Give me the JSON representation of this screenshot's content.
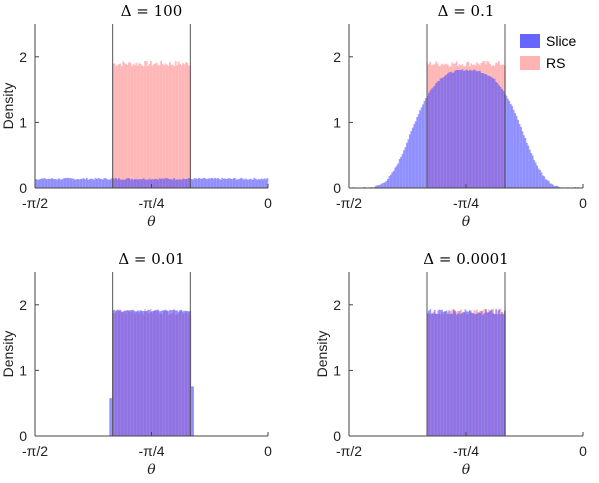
{
  "colors": {
    "slice": "#4b4bff",
    "rs": "#ff9999",
    "overlap": "#b07ab8",
    "axis": "#444444",
    "marker": "#555555"
  },
  "legend": {
    "placement": "top-right",
    "entries": [
      "Slice",
      "RS"
    ]
  },
  "chart_data": [
    {
      "type": "bar",
      "title": "Δ = 100",
      "xlabel": "θ",
      "ylabel": "Density",
      "xlim": [
        -1.5708,
        0
      ],
      "ylim": [
        0,
        2.5
      ],
      "xticks": [
        "-π/2",
        "-π/4",
        "0"
      ],
      "yticks": [
        "0",
        "1",
        "2"
      ],
      "truncation_lines": [
        -1.0472,
        -0.5236
      ],
      "series": [
        {
          "name": "Slice",
          "shape": "uniform",
          "x_range": [
            -1.5708,
            0
          ],
          "density": 0.14
        },
        {
          "name": "RS",
          "shape": "uniform",
          "x_range": [
            -1.0472,
            -0.5236
          ],
          "density": 1.91
        }
      ]
    },
    {
      "type": "bar",
      "title": "Δ = 0.1",
      "xlabel": "θ",
      "ylabel": "",
      "xlim": [
        -1.5708,
        0
      ],
      "ylim": [
        0,
        2.5
      ],
      "xticks": [
        "-π/2",
        "-π/4",
        "0"
      ],
      "yticks": [
        "0",
        "1",
        "2"
      ],
      "truncation_lines": [
        -1.0472,
        -0.5236
      ],
      "series": [
        {
          "name": "Slice",
          "shape": "bell",
          "peak_x": -0.78,
          "peak_density": 1.8,
          "x_range": [
            -1.55,
            -0.03
          ]
        },
        {
          "name": "RS",
          "shape": "uniform",
          "x_range": [
            -1.0472,
            -0.5236
          ],
          "density": 1.91
        }
      ]
    },
    {
      "type": "bar",
      "title": "Δ = 0.01",
      "xlabel": "θ",
      "ylabel": "Density",
      "xlim": [
        -1.5708,
        0
      ],
      "ylim": [
        0,
        2.5
      ],
      "xticks": [
        "-π/2",
        "-π/4",
        "0"
      ],
      "yticks": [
        "0",
        "1",
        "2"
      ],
      "truncation_lines": [
        -1.0472,
        -0.5236
      ],
      "series": [
        {
          "name": "Slice",
          "shape": "uniform_soft",
          "x_range": [
            -1.07,
            -0.5
          ],
          "density": 1.91
        },
        {
          "name": "RS",
          "shape": "uniform",
          "x_range": [
            -1.0472,
            -0.5236
          ],
          "density": 1.91
        }
      ]
    },
    {
      "type": "bar",
      "title": "Δ = 0.0001",
      "xlabel": "θ",
      "ylabel": "Density",
      "xlim": [
        -1.5708,
        0
      ],
      "ylim": [
        0,
        2.5
      ],
      "xticks": [
        "-π/2",
        "-π/4",
        "0"
      ],
      "yticks": [
        "0",
        "1",
        "2"
      ],
      "truncation_lines": [
        -1.0472,
        -0.5236
      ],
      "series": [
        {
          "name": "Slice",
          "shape": "uniform",
          "x_range": [
            -1.0472,
            -0.5236
          ],
          "density": 1.91
        },
        {
          "name": "RS",
          "shape": "uniform",
          "x_range": [
            -1.0472,
            -0.5236
          ],
          "density": 1.91
        }
      ]
    }
  ]
}
